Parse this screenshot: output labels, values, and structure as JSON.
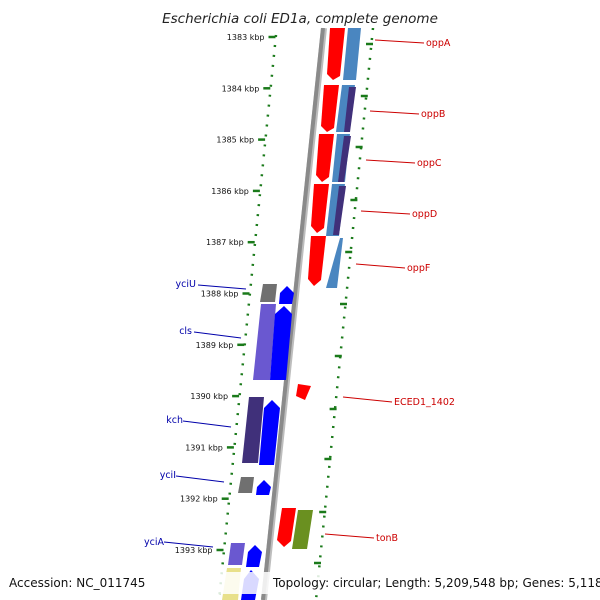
{
  "title": "Escherichia coli ED1a, complete genome",
  "footer": {
    "accession": "Accession: NC_011745",
    "summary": "Topology: circular; Length: 5,209,548 bp; Genes: 5,118"
  },
  "ruler": {
    "start_kbp": 1383,
    "end_kbp": 1393,
    "labels": [
      "1383 kbp",
      "1384 kbp",
      "1385 kbp",
      "1386 kbp",
      "1387 kbp",
      "1388 kbp",
      "1389 kbp",
      "1390 kbp",
      "1391 kbp",
      "1392 kbp",
      "1393 kbp"
    ]
  },
  "genes_right": [
    {
      "name": "oppA"
    },
    {
      "name": "oppB"
    },
    {
      "name": "oppC"
    },
    {
      "name": "oppD"
    },
    {
      "name": "oppF"
    },
    {
      "name": "ECED1_1402"
    },
    {
      "name": "tonB"
    }
  ],
  "genes_left": [
    {
      "name": "yciU"
    },
    {
      "name": "cls"
    },
    {
      "name": "kch"
    },
    {
      "name": "yciI"
    },
    {
      "name": "yciA"
    }
  ],
  "colors": {
    "forward_red": "#ff0000",
    "comparison_blue": "#4a86c0",
    "reverse_blue": "#0000ff",
    "purple": "#6a58d0",
    "dark_purple": "#40307a",
    "grey": "#707070",
    "olive": "#6a9020",
    "backbone": "#8a8a8a",
    "ring_green": "#1a7a1a",
    "label_red": "#cc0000",
    "label_blue": "#0000aa"
  }
}
